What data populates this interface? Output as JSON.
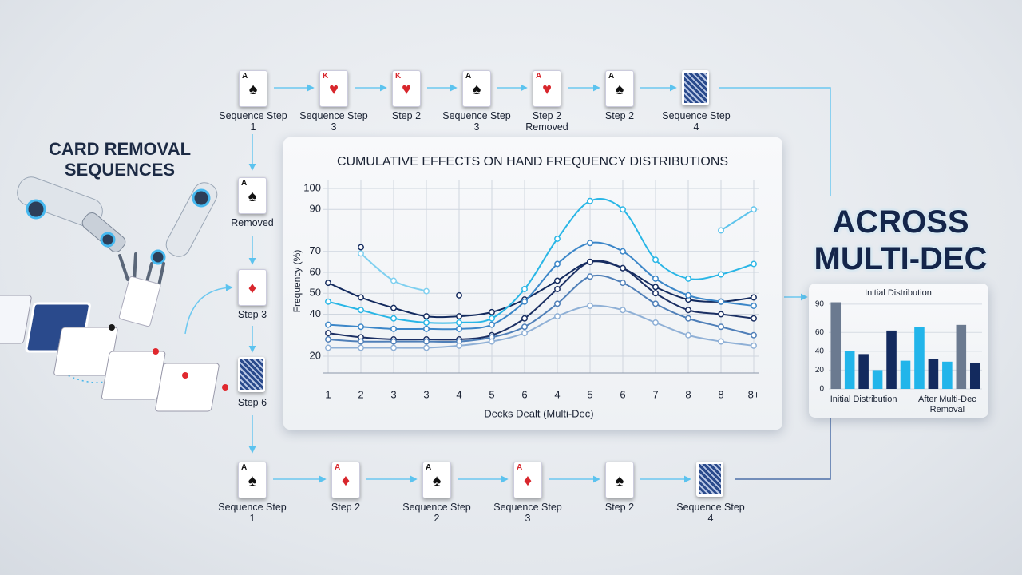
{
  "headline_left": "CARD REMOVAL SEQUENCES",
  "headline_right": "ACROSS MULTI-DEC",
  "top_sequence": [
    {
      "rank": "A",
      "suit": "♠",
      "label": "Sequence Step 1"
    },
    {
      "rank": "K",
      "suit": "♥",
      "label": "Sequence Step 3"
    },
    {
      "rank": "K",
      "suit": "♥",
      "label": "Step 2"
    },
    {
      "rank": "A",
      "suit": "♠",
      "label": "Sequence Step 3"
    },
    {
      "rank": "A",
      "suit": "♥",
      "label": "Step 2 Removed"
    },
    {
      "rank": "A",
      "suit": "♠",
      "label": "Step 2"
    },
    {
      "label": "Sequence Step 4"
    }
  ],
  "side_sequence": [
    {
      "rank": "A",
      "suit": "♠",
      "label": "Removed"
    },
    {
      "suit": "♦",
      "label": "Step 3"
    },
    {
      "label": "Step 6"
    }
  ],
  "bottom_sequence": [
    {
      "rank": "A",
      "suit": "♠",
      "label": "Sequence Step 1"
    },
    {
      "rank": "A",
      "suit": "♦",
      "label": "Step 2"
    },
    {
      "rank": "A",
      "suit": "♠",
      "label": "Sequence Step 2"
    },
    {
      "rank": "A",
      "suit": "♦",
      "label": "Sequence Step 3"
    },
    {
      "suit": "♠",
      "label": "Step 2"
    },
    {
      "label": "Sequence Step 4"
    }
  ],
  "chart_data": [
    {
      "type": "line",
      "title": "CUMULATIVE EFFECTS ON HAND FREQUENCY DISTRIBUTIONS",
      "x_label": "Decks Dealt (Multi-Dec)",
      "y_label": "Frequency (%)",
      "categories": [
        "1",
        "2",
        "3",
        "3",
        "4",
        "5",
        "6",
        "4",
        "5",
        "6",
        "7",
        "8",
        "8",
        "8+"
      ],
      "ylim": [
        12,
        100
      ],
      "yticks": [
        20,
        40,
        50,
        60,
        70,
        90,
        100
      ],
      "grid": true,
      "series": [
        {
          "color": "#132a5e",
          "values": [
            55,
            48,
            43,
            39,
            39,
            41,
            47,
            56,
            65,
            62,
            53,
            47,
            46,
            48
          ]
        },
        {
          "color": "#29b6e6",
          "values": [
            46,
            42,
            38,
            36,
            36,
            38,
            52,
            76,
            94,
            90,
            66,
            57,
            59,
            64
          ]
        },
        {
          "color": "#3b86c8",
          "values": [
            35,
            34,
            33,
            33,
            33,
            35,
            46,
            64,
            74,
            70,
            57,
            49,
            46,
            44
          ]
        },
        {
          "color": "#1b2f63",
          "values": [
            31,
            29,
            28,
            28,
            28,
            30,
            38,
            52,
            65,
            62,
            50,
            42,
            40,
            38
          ]
        },
        {
          "color": "#4f7fb8",
          "values": [
            28,
            27,
            27,
            27,
            27,
            29,
            34,
            45,
            58,
            55,
            45,
            38,
            34,
            30
          ]
        },
        {
          "color": "#8fb0d6",
          "values": [
            24,
            24,
            24,
            24,
            25,
            27,
            31,
            39,
            44,
            42,
            36,
            30,
            27,
            25
          ]
        },
        {
          "color": "#7fd0f0",
          "values": [
            null,
            69,
            56,
            51,
            null,
            null,
            null,
            null,
            null,
            null,
            null,
            null,
            null,
            null
          ]
        },
        {
          "color": "#5fc4ec",
          "values": [
            null,
            null,
            null,
            null,
            null,
            null,
            null,
            null,
            null,
            null,
            null,
            null,
            80,
            90
          ]
        },
        {
          "color": "#132a5e",
          "values": [
            null,
            72,
            null,
            null,
            49,
            null,
            null,
            null,
            null,
            null,
            null,
            null,
            null,
            null
          ]
        }
      ]
    },
    {
      "type": "bar",
      "title": "Initial Distribution",
      "categories": [
        null,
        null,
        "Initial Distribution",
        null,
        null,
        null,
        null,
        null,
        "After Multi-Dec Removal",
        null,
        null
      ],
      "values": [
        92,
        40,
        37,
        20,
        62,
        30,
        66,
        32,
        29,
        68,
        28
      ],
      "colors": [
        "#6b7a90",
        "#22b5ea",
        "#132a5e",
        "#22b5ea",
        "#132a5e",
        "#22b5ea",
        "#22b5ea",
        "#132a5e",
        "#22b5ea",
        "#6b7a90",
        "#132a5e"
      ],
      "ylim": [
        0,
        95
      ],
      "yticks": [
        0,
        20,
        40,
        60,
        90
      ]
    }
  ]
}
